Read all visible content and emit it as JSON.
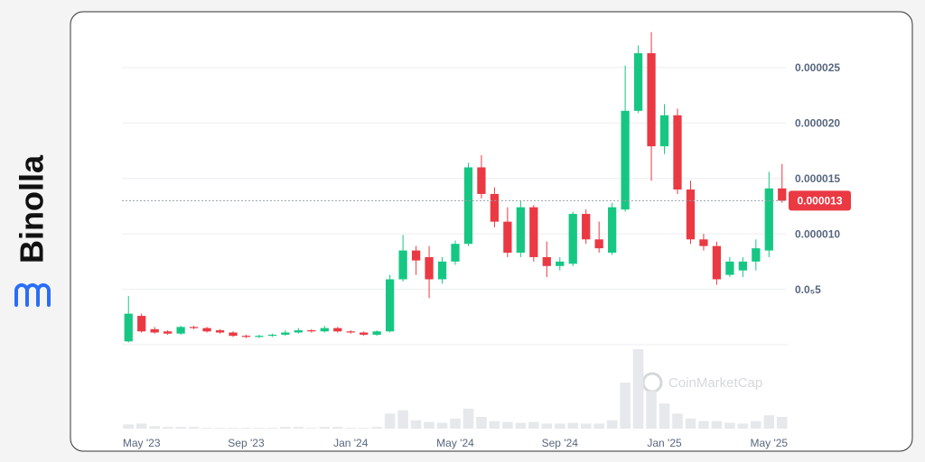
{
  "brand": {
    "name": "Binolla"
  },
  "watermark": "CoinMarketCap",
  "chart_data": {
    "type": "candlestick",
    "open": [
      3e-07,
      2.6e-06,
      1.4e-06,
      1.2e-06,
      1e-06,
      1.6e-06,
      1.5e-06,
      1.3e-06,
      1.1e-06,
      8e-07,
      7e-07,
      8e-07,
      9e-07,
      1.1e-06,
      1.3e-06,
      1.2e-06,
      1.5e-06,
      1.2e-06,
      1.1e-06,
      9e-07,
      1.2e-06,
      5.9e-06,
      8.5e-06,
      7.9e-06,
      5.9e-06,
      7.5e-06,
      9.1e-06,
      1.6e-05,
      1.36e-05,
      1.11e-05,
      8.3e-06,
      1.24e-05,
      7.9e-06,
      7.1e-06,
      7.3e-06,
      1.18e-05,
      9.5e-06,
      8.3e-06,
      1.22e-05,
      2.11e-05,
      2.63e-05,
      1.79e-05,
      2.07e-05,
      1.4e-05,
      9.5e-06,
      8.9e-06,
      6.3e-06,
      6.7e-06,
      7.5e-06,
      8.5e-06,
      1.41e-05
    ],
    "high": [
      4.4e-06,
      2.8e-06,
      1.6e-06,
      1.3e-06,
      1.7e-06,
      1.7e-06,
      1.6e-06,
      1.4e-06,
      1.2e-06,
      9e-07,
      9e-07,
      1e-06,
      1.3e-06,
      1.5e-06,
      1.4e-06,
      1.7e-06,
      1.6e-06,
      1.3e-06,
      1.2e-06,
      1.3e-06,
      6.3e-06,
      9.9e-06,
      8.9e-06,
      8.9e-06,
      7.9e-06,
      9.4e-06,
      1.64e-05,
      1.71e-05,
      1.42e-05,
      1.24e-05,
      1.3e-05,
      1.26e-05,
      9.3e-06,
      7.9e-06,
      1.2e-05,
      1.22e-05,
      1.11e-05,
      1.28e-05,
      2.52e-05,
      2.7e-05,
      2.82e-05,
      2.17e-05,
      2.13e-05,
      1.48e-05,
      1e-05,
      9.3e-06,
      7.9e-06,
      7.9e-06,
      9.5e-06,
      1.56e-05,
      1.63e-05
    ],
    "low": [
      2e-07,
      1.1e-06,
      1e-06,
      9e-07,
      9e-07,
      1.4e-06,
      1.1e-06,
      1e-06,
      7e-07,
      6e-07,
      6e-07,
      7e-07,
      8e-07,
      1e-06,
      1.1e-06,
      1.1e-06,
      1.1e-06,
      1e-06,
      8e-07,
      8e-07,
      1.1e-06,
      5.7e-06,
      6.3e-06,
      4.2e-06,
      5.5e-06,
      7.2e-06,
      8.9e-06,
      1.32e-05,
      1.06e-05,
      7.9e-06,
      7.9e-06,
      7.5e-06,
      6.1e-06,
      6.7e-06,
      7.1e-06,
      9.1e-06,
      8.3e-06,
      8.1e-06,
      1.2e-05,
      2.09e-05,
      1.48e-05,
      1.72e-05,
      1.36e-05,
      9.1e-06,
      8.5e-06,
      5.4e-06,
      6.1e-06,
      6.1e-06,
      6.7e-06,
      7.9e-06,
      1.28e-05
    ],
    "close": [
      2.8e-06,
      1.2e-06,
      1.1e-06,
      1e-06,
      1.6e-06,
      1.5e-06,
      1.2e-06,
      1.1e-06,
      8e-07,
      7e-07,
      8e-07,
      9e-07,
      1.1e-06,
      1.3e-06,
      1.2e-06,
      1.5e-06,
      1.2e-06,
      1.1e-06,
      9e-07,
      1.2e-06,
      5.9e-06,
      8.5e-06,
      7.6e-06,
      5.9e-06,
      7.5e-06,
      9.1e-06,
      1.6e-05,
      1.36e-05,
      1.11e-05,
      8.3e-06,
      1.24e-05,
      7.9e-06,
      7.1e-06,
      7.5e-06,
      1.18e-05,
      9.5e-06,
      8.7e-06,
      1.24e-05,
      2.11e-05,
      2.63e-05,
      1.79e-05,
      2.07e-05,
      1.4e-05,
      9.5e-06,
      8.9e-06,
      5.9e-06,
      7.5e-06,
      7.5e-06,
      8.7e-06,
      1.41e-05,
      1.3e-05
    ],
    "volume": [
      5,
      6,
      3,
      2,
      2,
      2,
      1,
      1,
      1,
      1,
      1,
      1,
      2,
      2,
      1,
      2,
      2,
      1,
      1,
      2,
      18,
      22,
      10,
      8,
      7,
      12,
      24,
      14,
      9,
      8,
      7,
      8,
      6,
      6,
      7,
      6,
      6,
      10,
      55,
      95,
      45,
      30,
      18,
      12,
      9,
      9,
      7,
      6,
      9,
      16,
      14
    ],
    "colors": {
      "up": "#16c784",
      "down": "#ea3943"
    },
    "xlim": [
      -0.5,
      50.5
    ],
    "xticks": [
      {
        "value": 1,
        "label": "May '23"
      },
      {
        "value": 9,
        "label": "Sep '23"
      },
      {
        "value": 17,
        "label": "Jan '24"
      },
      {
        "value": 25,
        "label": "May '24"
      },
      {
        "value": 33,
        "label": "Sep '24"
      },
      {
        "value": 41,
        "label": "Jan '25"
      },
      {
        "value": 49,
        "label": "May '25"
      }
    ],
    "ylim": [
      0,
      3e-05
    ],
    "yticks": [
      {
        "value": 5e-06,
        "label": "0.0₅5"
      },
      {
        "value": 1e-05,
        "label": "0.000010"
      },
      1.5e-05,
      {
        "value": 2e-05,
        "label": "0.000020"
      },
      2.5e-05
    ],
    "current_price": 1.3e-05,
    "grid": true
  }
}
